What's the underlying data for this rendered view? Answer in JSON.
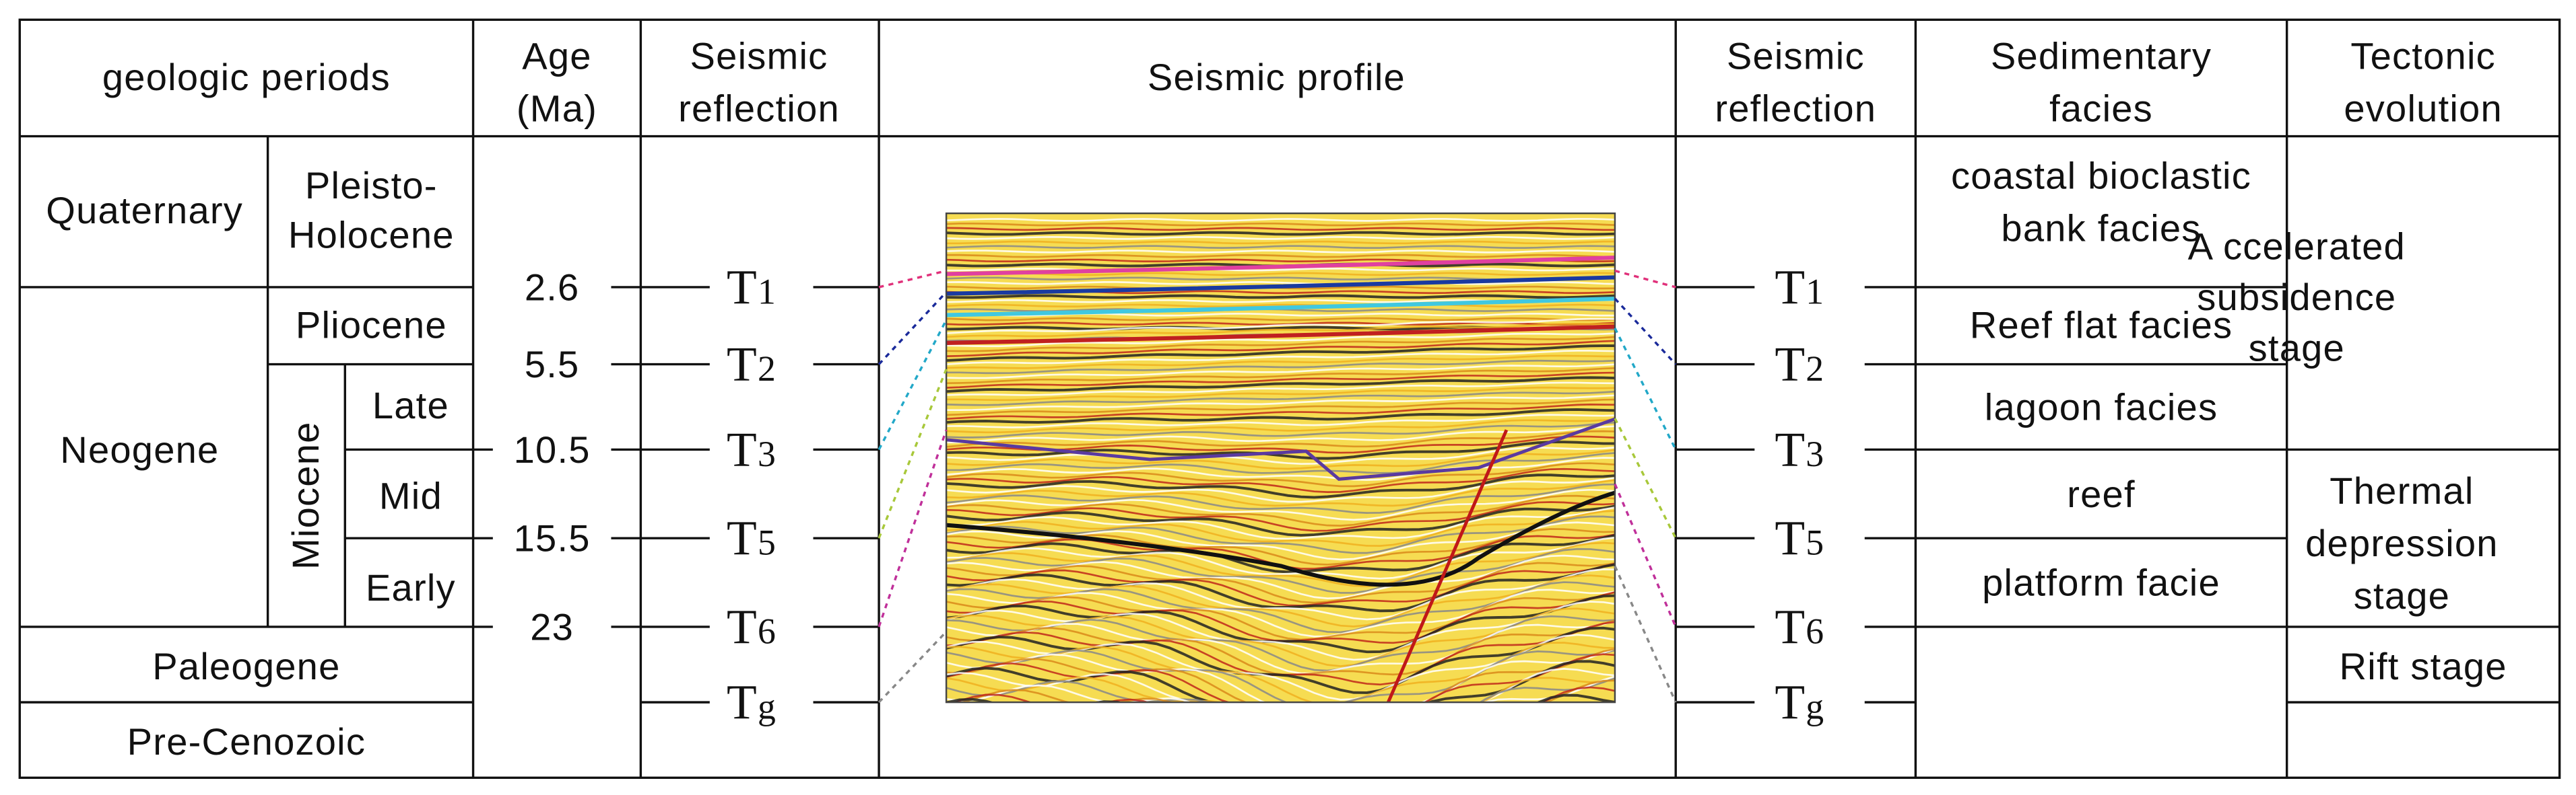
{
  "headers": [
    [
      "geologic periods"
    ],
    [
      "Age",
      "(Ma)"
    ],
    [
      "Seismic",
      "reflection"
    ],
    [
      "Seismic profile"
    ],
    [
      "Seismic",
      "reflection"
    ],
    [
      "Sedimentary",
      "facies"
    ],
    [
      "Tectonic",
      "evolution"
    ]
  ],
  "periods": [
    "Quaternary",
    "Neogene",
    "Paleogene",
    "Pre-Cenozoic"
  ],
  "epochs": [
    [
      "Pleisto-",
      "Holocene"
    ],
    [
      "Pliocene"
    ],
    [
      "Miocene"
    ]
  ],
  "miocene_stages": [
    "Late",
    "Mid",
    "Early"
  ],
  "ages": [
    2.6,
    5.5,
    10.5,
    15.5,
    23
  ],
  "reflections": [
    [
      "T",
      "1"
    ],
    [
      "T",
      "2"
    ],
    [
      "T",
      "3"
    ],
    [
      "T",
      "5"
    ],
    [
      "T",
      "6"
    ],
    [
      "T",
      "g"
    ]
  ],
  "facies": [
    [
      "coastal bioclastic",
      "bank facies"
    ],
    [
      "Reef flat facies"
    ],
    [
      "lagoon facies"
    ],
    [
      "reef"
    ],
    [
      "platform facie"
    ]
  ],
  "tectonics": [
    [
      "A ccelerated",
      "subsidence",
      "stage"
    ],
    [
      "Thermal",
      "depression",
      "stage"
    ],
    [
      "Rift stage"
    ]
  ]
}
